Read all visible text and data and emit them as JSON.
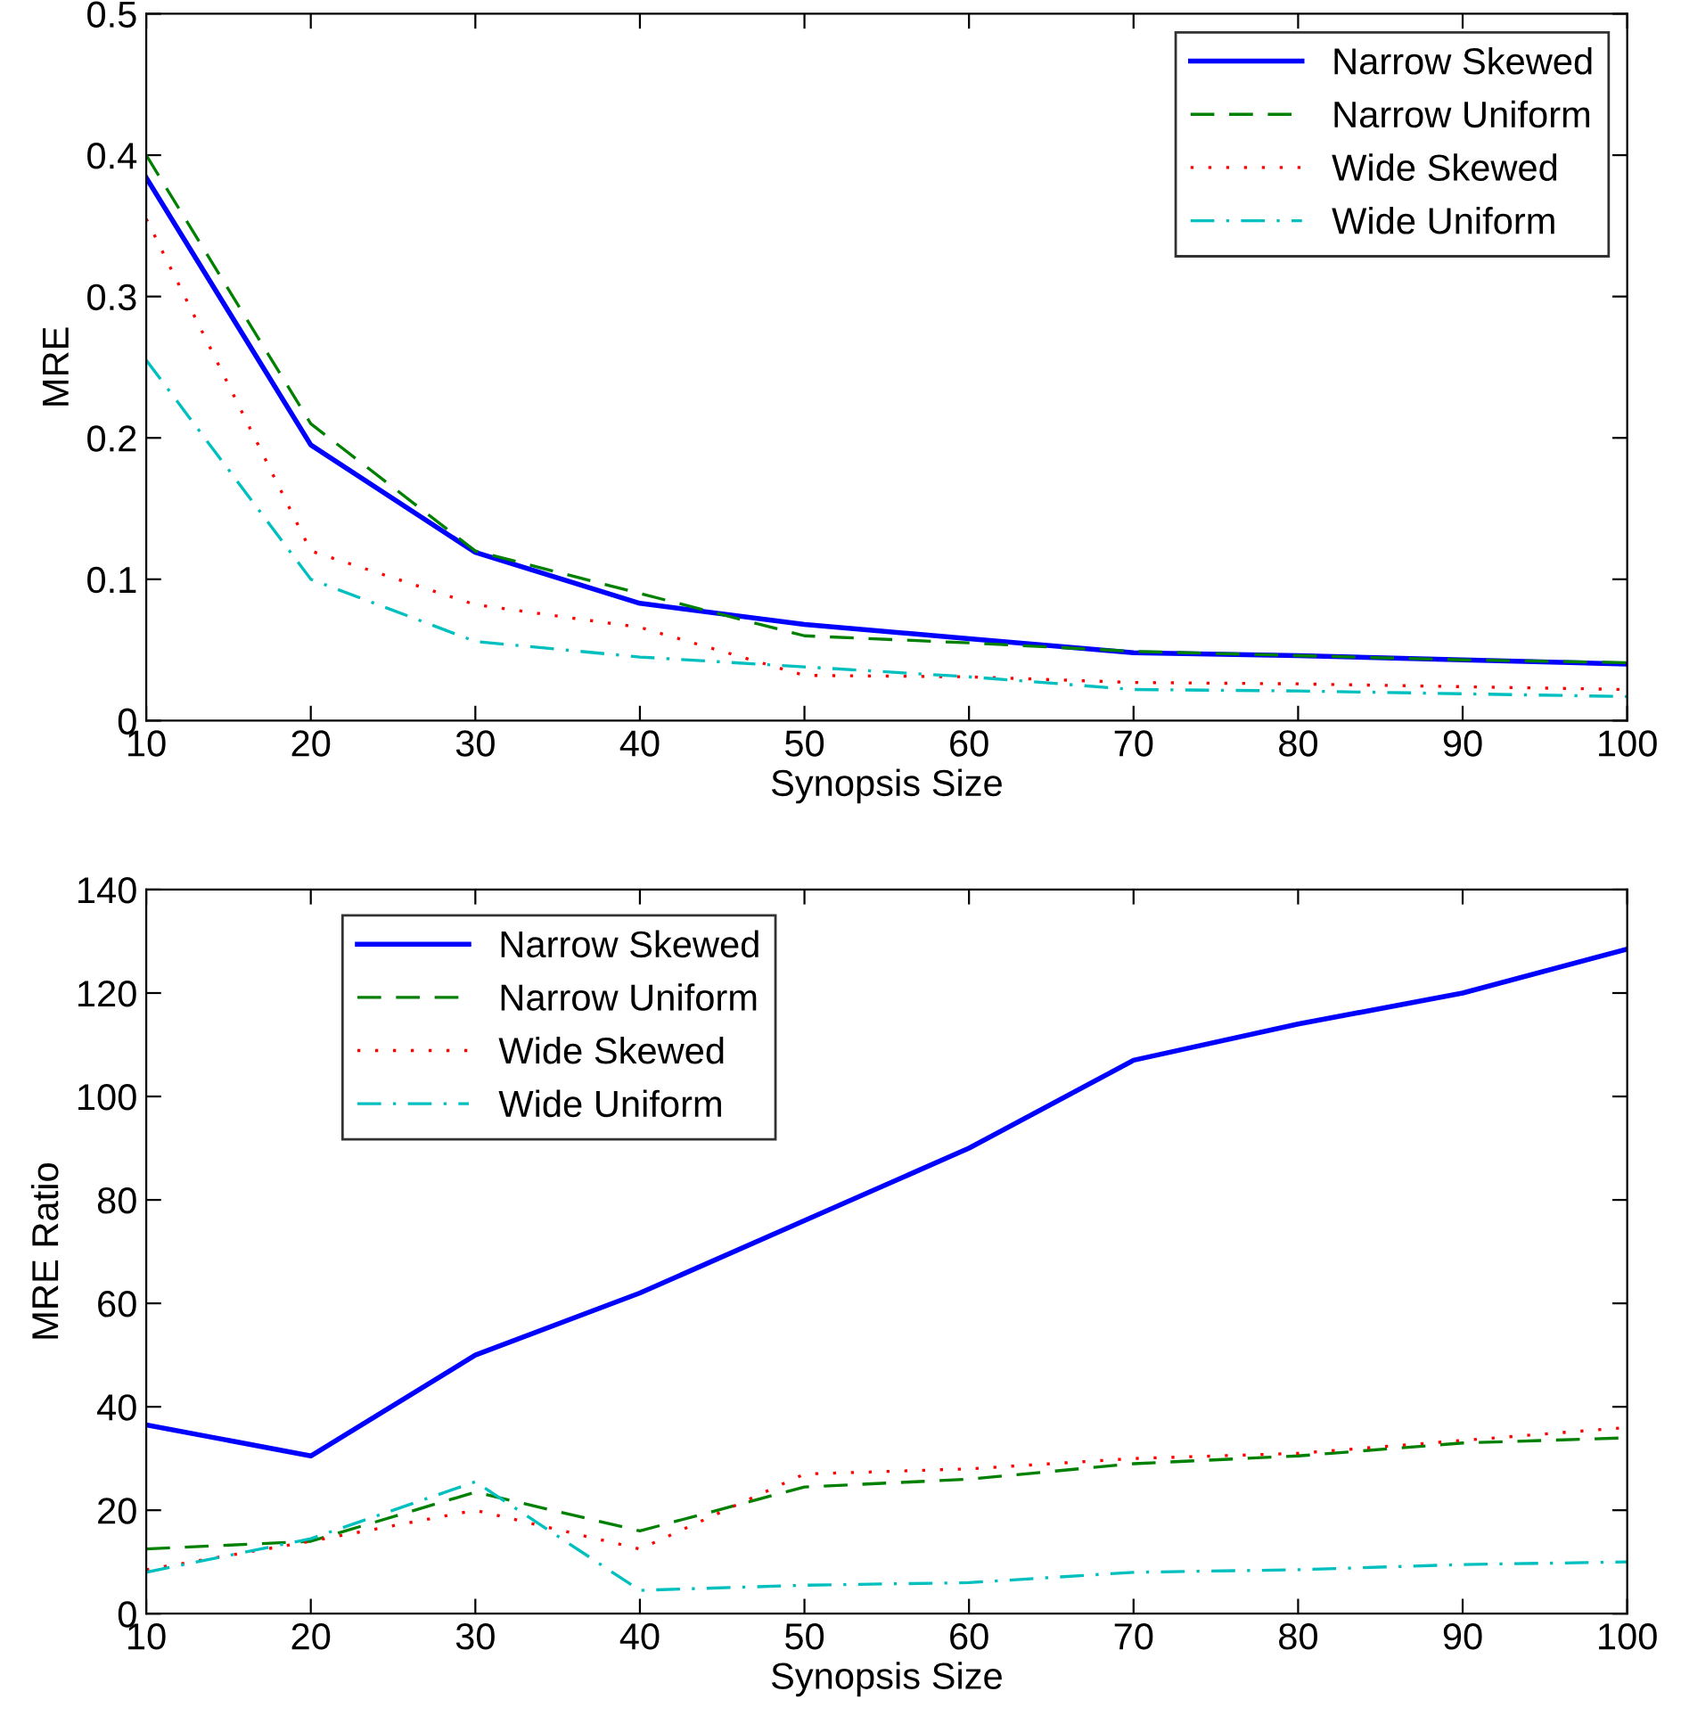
{
  "chart_data": [
    {
      "type": "line",
      "xlabel": "Synopsis Size",
      "ylabel": "MRE",
      "x": [
        10,
        20,
        30,
        40,
        50,
        60,
        70,
        80,
        90,
        100
      ],
      "xlim": [
        10,
        100
      ],
      "xticks": [
        10,
        20,
        30,
        40,
        50,
        60,
        70,
        80,
        90,
        100
      ],
      "ylim": [
        0,
        0.5
      ],
      "yticks": [
        0,
        0.1,
        0.2,
        0.3,
        0.4,
        0.5
      ],
      "grid": false,
      "legend": "top right",
      "series": [
        {
          "name": "Narrow Skewed",
          "color": "#0000ff",
          "line_style": "solid",
          "values": [
            0.384,
            0.195,
            0.119,
            0.083,
            0.068,
            0.058,
            0.048,
            0.046,
            0.043,
            0.04
          ]
        },
        {
          "name": "Narrow Uniform",
          "color": "#008000",
          "line_style": "dashed",
          "values": [
            0.4,
            0.21,
            0.12,
            0.09,
            0.06,
            0.055,
            0.049,
            0.046,
            0.043,
            0.041
          ]
        },
        {
          "name": "Wide Skewed",
          "color": "#ff0000",
          "line_style": "dotted",
          "values": [
            0.355,
            0.12,
            0.082,
            0.066,
            0.032,
            0.031,
            0.027,
            0.026,
            0.024,
            0.022
          ]
        },
        {
          "name": "Wide Uniform",
          "color": "#00bfbf",
          "line_style": "dashdot",
          "values": [
            0.255,
            0.1,
            0.056,
            0.045,
            0.038,
            0.031,
            0.022,
            0.021,
            0.019,
            0.017
          ]
        }
      ]
    },
    {
      "type": "line",
      "xlabel": "Synopsis Size",
      "ylabel": "MRE Ratio",
      "x": [
        10,
        20,
        30,
        40,
        50,
        60,
        70,
        80,
        90,
        100
      ],
      "xlim": [
        10,
        100
      ],
      "xticks": [
        10,
        20,
        30,
        40,
        50,
        60,
        70,
        80,
        90,
        100
      ],
      "ylim": [
        0,
        140
      ],
      "yticks": [
        0,
        20,
        40,
        60,
        80,
        100,
        120,
        140
      ],
      "grid": false,
      "legend": "top left",
      "series": [
        {
          "name": "Narrow Skewed",
          "color": "#0000ff",
          "line_style": "solid",
          "values": [
            36.5,
            30.5,
            50,
            62,
            76,
            90,
            107,
            114,
            120,
            128.5
          ]
        },
        {
          "name": "Narrow Uniform",
          "color": "#008000",
          "line_style": "dashed",
          "values": [
            12.5,
            14,
            23.5,
            16,
            24.5,
            26,
            29,
            30.5,
            33,
            34
          ]
        },
        {
          "name": "Wide Skewed",
          "color": "#ff0000",
          "line_style": "dotted",
          "values": [
            8.5,
            14,
            20,
            12.5,
            27,
            28,
            30,
            31,
            33.5,
            36
          ]
        },
        {
          "name": "Wide Uniform",
          "color": "#00bfbf",
          "line_style": "dashdot",
          "values": [
            8,
            14.5,
            25.5,
            4.5,
            5.5,
            6,
            8,
            8.5,
            9.5,
            10
          ]
        }
      ]
    }
  ]
}
